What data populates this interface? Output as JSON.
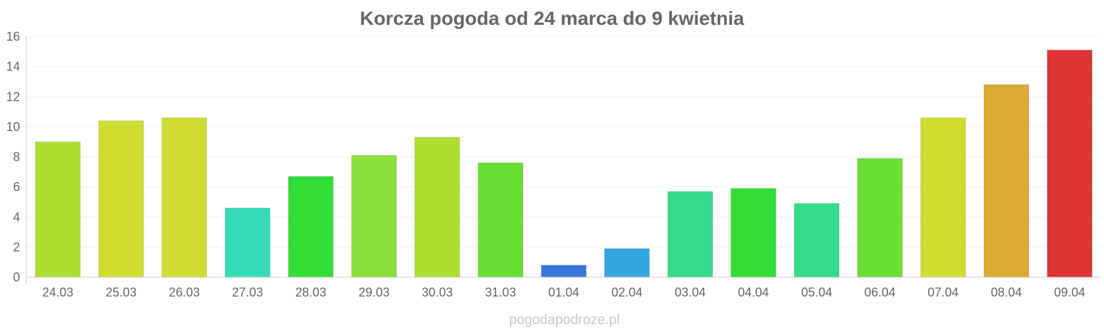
{
  "chart_data": {
    "type": "bar",
    "title": "Korcza pogoda od 24 marca do 9 kwietnia",
    "xlabel": "",
    "ylabel": "",
    "ylim": [
      0,
      16
    ],
    "yticks": [
      0,
      2,
      4,
      6,
      8,
      10,
      12,
      14,
      16
    ],
    "grid": true,
    "legend": "none",
    "categories": [
      "24.03",
      "25.03",
      "26.03",
      "27.03",
      "28.03",
      "29.03",
      "30.03",
      "31.03",
      "01.04",
      "02.04",
      "03.04",
      "04.04",
      "05.04",
      "06.04",
      "07.04",
      "08.04",
      "09.04"
    ],
    "values": [
      9.0,
      10.4,
      10.6,
      4.6,
      6.7,
      8.1,
      9.3,
      7.6,
      0.8,
      1.9,
      5.7,
      5.9,
      4.9,
      7.9,
      10.6,
      12.8,
      15.1
    ],
    "colors": [
      "#addf32",
      "#cfdd32",
      "#cfdd32",
      "#33dcb6",
      "#33dd38",
      "#8ade38",
      "#addf32",
      "#6adf33",
      "#3575dc",
      "#33a7dc",
      "#34db88",
      "#33dd38",
      "#34db88",
      "#6adf33",
      "#cfdd32",
      "#ddab34",
      "#dd3434"
    ]
  },
  "footer": {
    "watermark": "pogodapodroze.pl"
  }
}
